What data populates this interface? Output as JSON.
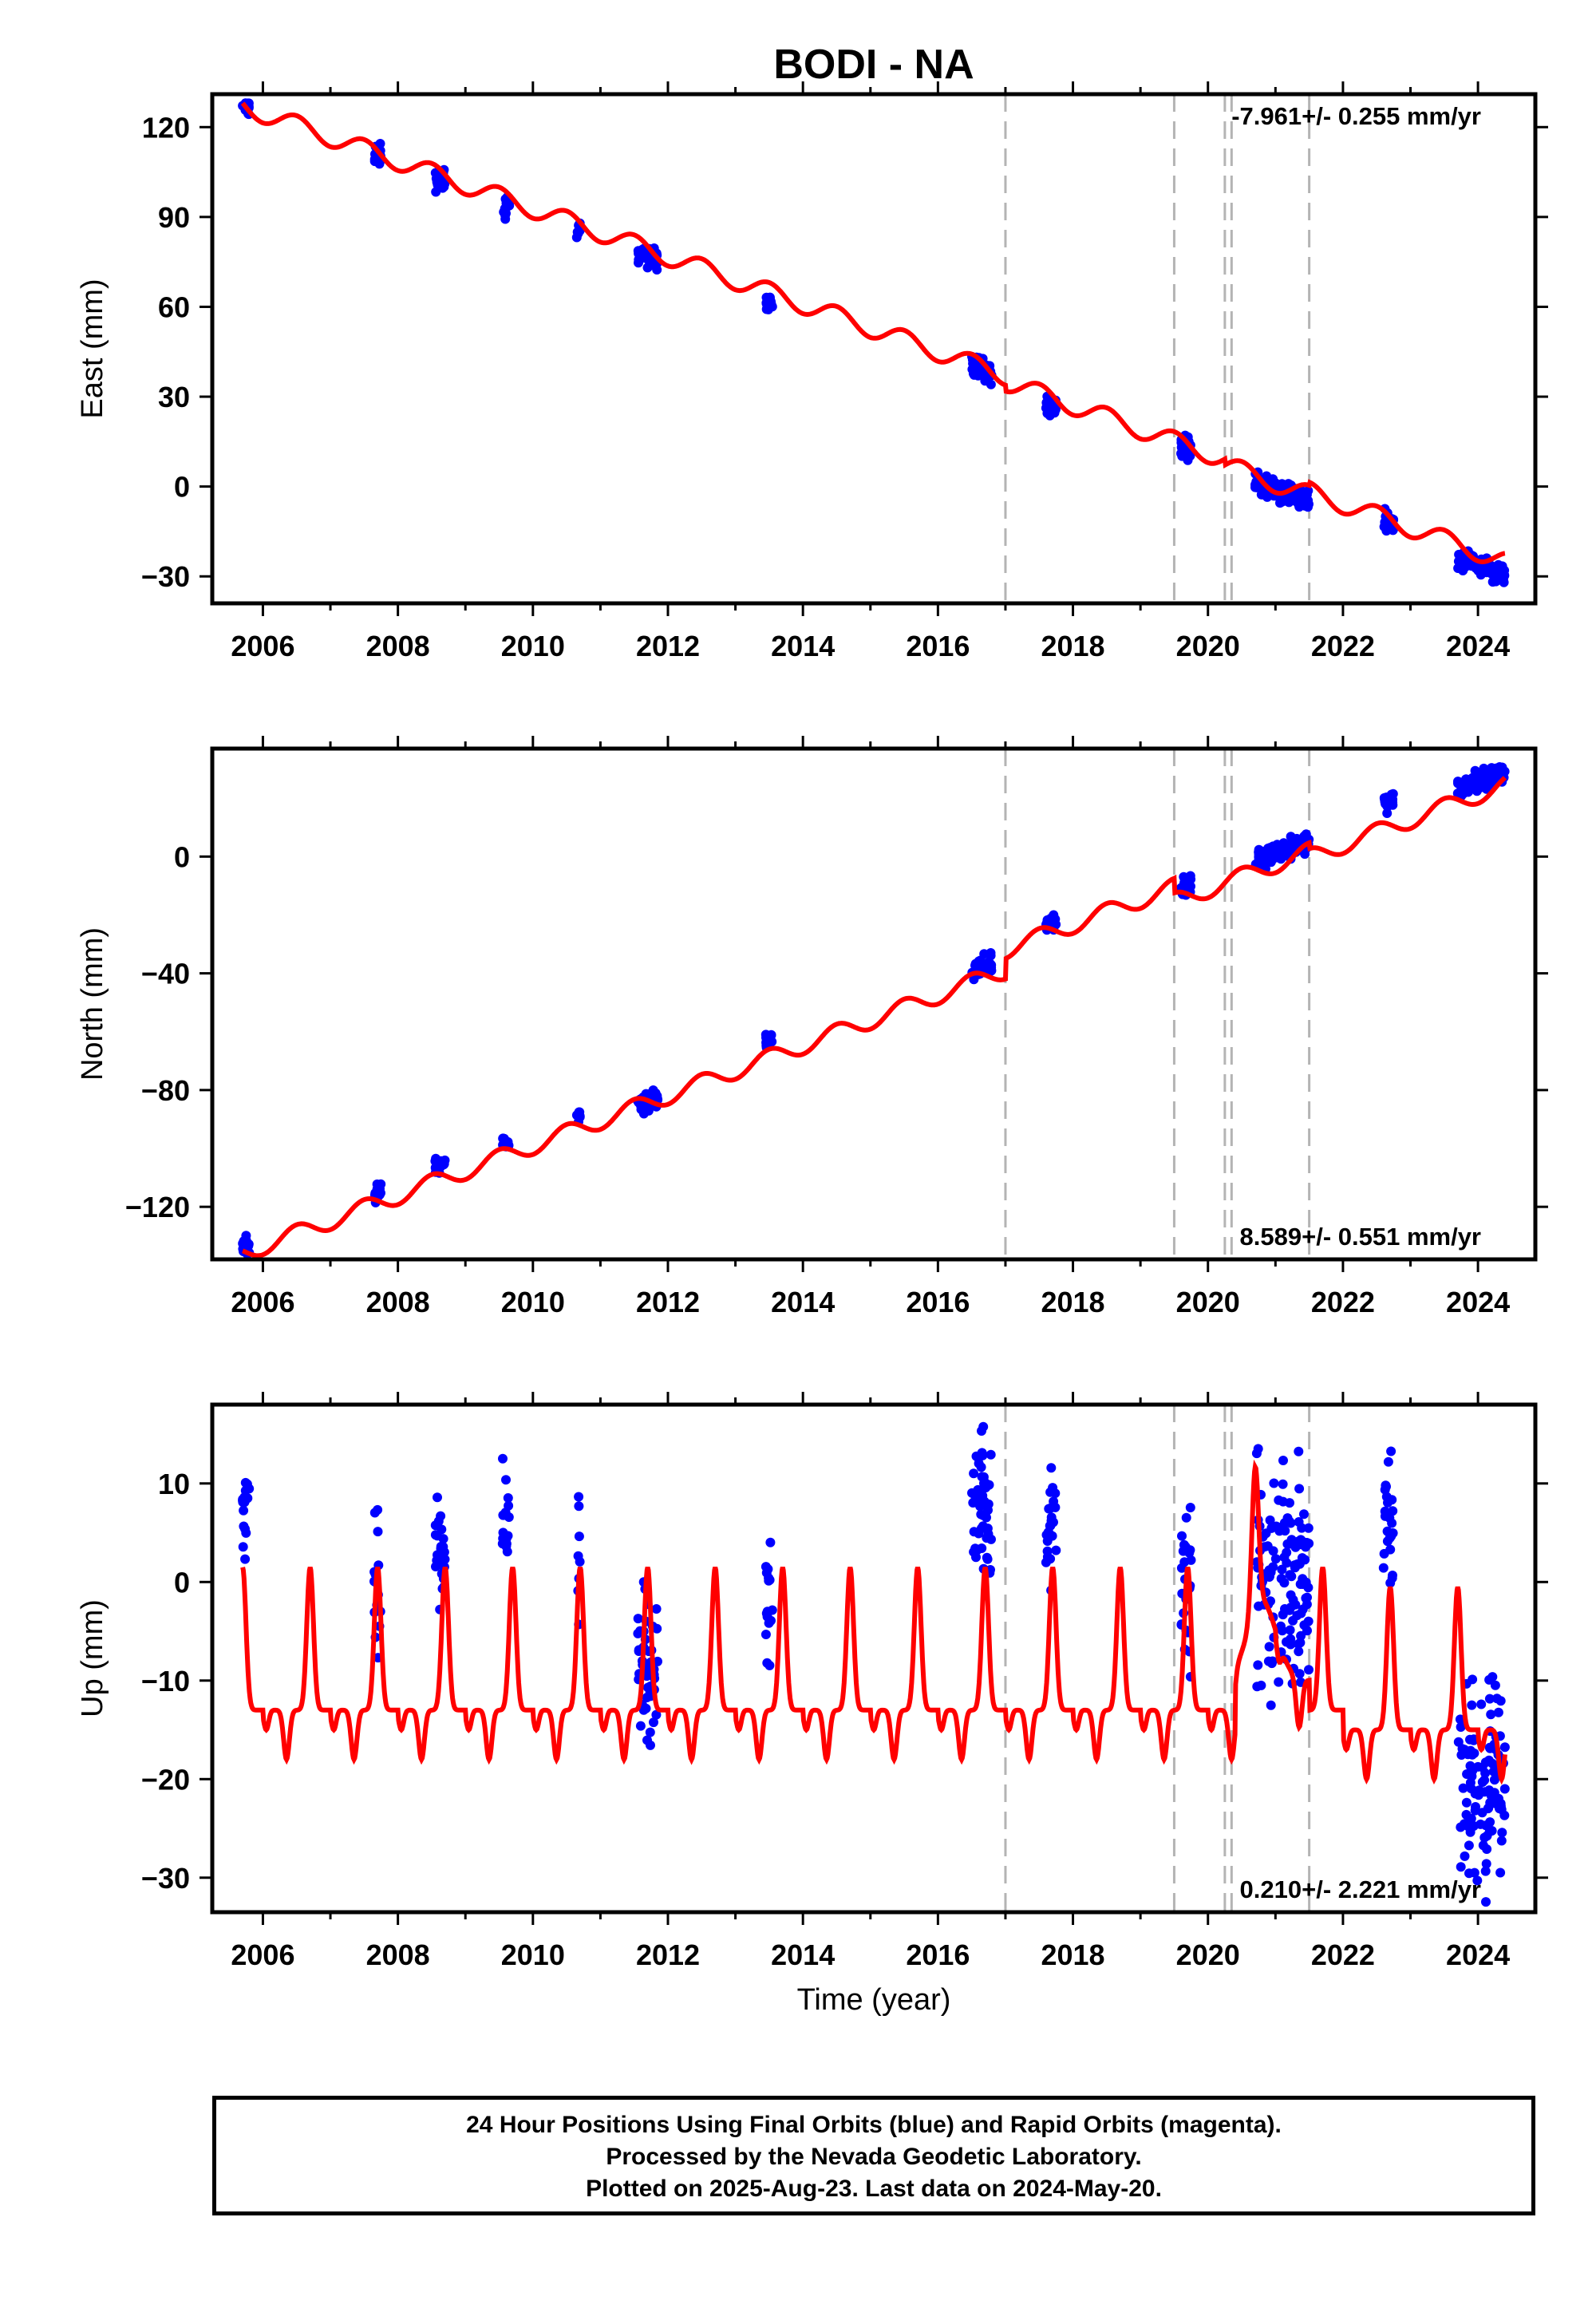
{
  "title": "BODI - NA",
  "colors": {
    "fit": "#ff0000",
    "final_orbits": "#0000ff",
    "breaks": "#b4b4b4",
    "frame": "#000000"
  },
  "xaxis": {
    "ticks": [
      "2006",
      "2008",
      "2010",
      "2012",
      "2014",
      "2016",
      "2018",
      "2020",
      "2022",
      "2024"
    ],
    "label": "Time (year)"
  },
  "footer": {
    "line1": "24 Hour Positions Using Final Orbits (blue) and Rapid Orbits (magenta).",
    "line2": "Processed by the Nevada Geodetic Laboratory.",
    "line3": "Plotted on 2025-Aug-23. Last data on 2024-May-20."
  },
  "chart_data": [
    {
      "type": "scatter",
      "title": "BODI - NA",
      "ylabel": "East (mm)",
      "xlim": [
        2005.25,
        2024.85
      ],
      "ylim": [
        -39,
        131
      ],
      "yticks": [
        "120",
        "90",
        "60",
        "30",
        "0",
        "−30"
      ],
      "yticks_values": [
        120,
        90,
        60,
        30,
        0,
        -30
      ],
      "rate_label": "-7.961+/- 0.255 mm/yr",
      "rate_position": "top-right",
      "breaks": [
        2017.0,
        2019.5,
        2020.25,
        2020.35,
        2021.5
      ],
      "series": [
        {
          "name": "Final Orbits",
          "kind": "points",
          "clusters": [
            [
              2005.7,
              2005.8,
              127
            ],
            [
              2007.65,
              2007.75,
              111
            ],
            [
              2008.55,
              2008.7,
              102
            ],
            [
              2009.55,
              2009.65,
              93
            ],
            [
              2010.65,
              2010.7,
              86
            ],
            [
              2011.55,
              2011.85,
              77
            ],
            [
              2013.45,
              2013.55,
              61
            ],
            [
              2016.5,
              2016.8,
              39
            ],
            [
              2017.6,
              2017.75,
              27
            ],
            [
              2019.6,
              2019.75,
              13
            ],
            [
              2020.7,
              2021.5,
              -2
            ],
            [
              2022.6,
              2022.75,
              -12
            ],
            [
              2023.7,
              2024.4,
              -27
            ]
          ]
        },
        {
          "name": "Model fit",
          "kind": "line",
          "rate": -7.961,
          "anchor": [
            2005.7,
            127
          ],
          "annual_amplitude": 3.2,
          "offsets": [
            [
              2017.0,
              -2.0
            ],
            [
              2020.25,
              -2.0
            ],
            [
              2021.5,
              1.0
            ]
          ]
        }
      ]
    },
    {
      "type": "scatter",
      "ylabel": "North (mm)",
      "xlim": [
        2005.25,
        2024.85
      ],
      "ylim": [
        -138,
        37
      ],
      "yticks": [
        "0",
        "−40",
        "−80",
        "−120"
      ],
      "yticks_values": [
        0,
        -40,
        -80,
        -120
      ],
      "rate_label": "8.589+/- 0.551 mm/yr",
      "rate_position": "bottom-right",
      "breaks": [
        2017.0,
        2019.5,
        2020.25,
        2020.35,
        2021.5
      ],
      "series": [
        {
          "name": "Final Orbits",
          "kind": "points",
          "clusters": [
            [
              2005.7,
              2005.8,
              -133
            ],
            [
              2007.65,
              2007.75,
              -115
            ],
            [
              2008.55,
              2008.7,
              -105
            ],
            [
              2009.55,
              2009.65,
              -98
            ],
            [
              2010.65,
              2010.7,
              -90
            ],
            [
              2011.55,
              2011.85,
              -84
            ],
            [
              2013.45,
              2013.55,
              -63
            ],
            [
              2016.5,
              2016.8,
              -38
            ],
            [
              2017.6,
              2017.75,
              -23
            ],
            [
              2019.6,
              2019.75,
              -10
            ],
            [
              2020.7,
              2021.5,
              2
            ],
            [
              2022.6,
              2022.75,
              19
            ],
            [
              2023.7,
              2024.4,
              26
            ]
          ]
        },
        {
          "name": "Model fit",
          "kind": "line",
          "rate": 8.589,
          "anchor": [
            2005.7,
            -136
          ],
          "annual_amplitude": 3.0,
          "offsets": [
            [
              2017.0,
              7.0
            ],
            [
              2019.5,
              -5.0
            ],
            [
              2021.5,
              -2.0
            ]
          ]
        }
      ]
    },
    {
      "type": "scatter",
      "ylabel": "Up (mm)",
      "xlabel": "Time (year)",
      "xlim": [
        2005.25,
        2024.85
      ],
      "ylim": [
        -33.5,
        18
      ],
      "yticks": [
        "10",
        "0",
        "−10",
        "−20",
        "−30"
      ],
      "yticks_values": [
        10,
        0,
        -10,
        -20,
        -30
      ],
      "rate_label": "0.210+/- 2.221 mm/yr",
      "rate_position": "bottom-right",
      "breaks": [
        2017.0,
        2019.5,
        2020.25,
        2020.35,
        2021.5
      ],
      "series": [
        {
          "name": "Final Orbits",
          "kind": "points",
          "clusters": [
            [
              2005.7,
              2005.8,
              8
            ],
            [
              2007.65,
              2007.75,
              0
            ],
            [
              2008.55,
              2008.7,
              2
            ],
            [
              2009.55,
              2009.65,
              5
            ],
            [
              2010.65,
              2010.7,
              3
            ],
            [
              2011.55,
              2011.85,
              -9
            ],
            [
              2013.45,
              2013.55,
              -3
            ],
            [
              2016.5,
              2016.8,
              8
            ],
            [
              2017.6,
              2017.75,
              6
            ],
            [
              2019.6,
              2019.75,
              0
            ],
            [
              2020.7,
              2021.5,
              0
            ],
            [
              2022.6,
              2022.75,
              7
            ],
            [
              2023.7,
              2024.4,
              -20
            ]
          ]
        },
        {
          "name": "Model fit",
          "kind": "line",
          "annual_amplitude": 10.0
        }
      ]
    }
  ]
}
